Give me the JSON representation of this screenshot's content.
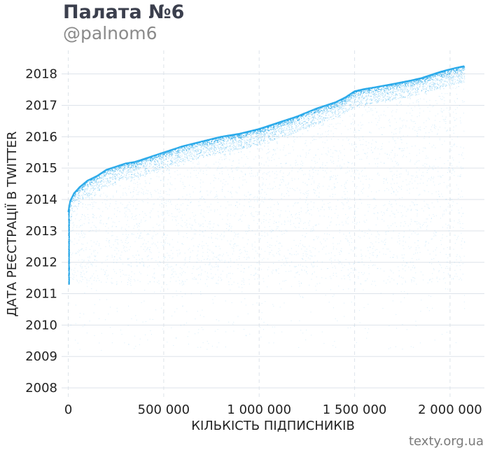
{
  "header": {
    "title": "Палата №6",
    "subtitle": "@palnom6"
  },
  "footer": {
    "source": "texty.org.ua"
  },
  "colors": {
    "points": "#1aa3e8",
    "grid": "#dde3ea"
  },
  "chart_data": {
    "type": "scatter",
    "title": "Палата №6",
    "subtitle": "@palnom6",
    "xlabel": "КІЛЬКІСТЬ ПІДПИСНИКІВ",
    "ylabel": "ДАТА РЕЄСТРАЦІЇ В TWITTER",
    "xlim": [
      -35000,
      2180000
    ],
    "ylim": [
      2007.6,
      2018.75
    ],
    "grid": true,
    "x_ticks": [
      {
        "value": 0,
        "label": "0"
      },
      {
        "value": 500000,
        "label": "500 000"
      },
      {
        "value": 1000000,
        "label": "1 000 000"
      },
      {
        "value": 1500000,
        "label": "1 500 000"
      },
      {
        "value": 2000000,
        "label": "2 000 000"
      }
    ],
    "y_ticks": [
      {
        "value": 2008,
        "label": "2008"
      },
      {
        "value": 2009,
        "label": "2009"
      },
      {
        "value": 2010,
        "label": "2010"
      },
      {
        "value": 2011,
        "label": "2011"
      },
      {
        "value": 2012,
        "label": "2012"
      },
      {
        "value": 2013,
        "label": "2013"
      },
      {
        "value": 2014,
        "label": "2014"
      },
      {
        "value": 2015,
        "label": "2015"
      },
      {
        "value": 2016,
        "label": "2016"
      },
      {
        "value": 2017,
        "label": "2017"
      },
      {
        "value": 2018,
        "label": "2018"
      }
    ],
    "frontier": {
      "name": "upper edge of follower registration dates",
      "x": [
        0,
        10000,
        30000,
        60000,
        100000,
        150000,
        200000,
        250000,
        300000,
        350000,
        400000,
        500000,
        600000,
        700000,
        800000,
        900000,
        1000000,
        1100000,
        1200000,
        1300000,
        1400000,
        1450000,
        1500000,
        1550000,
        1600000,
        1700000,
        1800000,
        1850000,
        1900000,
        1950000,
        2000000,
        2050000,
        2075000
      ],
      "y": [
        2013.6,
        2013.95,
        2014.2,
        2014.4,
        2014.6,
        2014.75,
        2014.95,
        2015.05,
        2015.15,
        2015.2,
        2015.3,
        2015.5,
        2015.7,
        2015.85,
        2016.0,
        2016.1,
        2016.25,
        2016.45,
        2016.65,
        2016.9,
        2017.1,
        2017.25,
        2017.45,
        2017.52,
        2017.57,
        2017.68,
        2017.8,
        2017.87,
        2017.97,
        2018.07,
        2018.15,
        2018.22,
        2018.25
      ]
    },
    "point_count_rendered": 9000,
    "density_floor_year": 2011.3
  }
}
